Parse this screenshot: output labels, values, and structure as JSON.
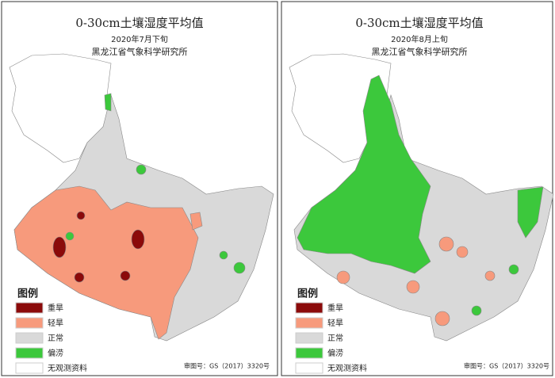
{
  "panels": [
    {
      "title": "0-30cm土壤湿度平均值",
      "date": "2020年7月下旬",
      "institute": "黑龙江省气象科学研究所",
      "legend": {
        "title": "图例",
        "items": [
          {
            "label": "重旱",
            "color": "#8b0a0a"
          },
          {
            "label": "轻旱",
            "color": "#f79a7c"
          },
          {
            "label": "正常",
            "color": "#d9d9d9"
          },
          {
            "label": "偏涝",
            "color": "#3cc83c"
          },
          {
            "label": "无观测资料",
            "color": "#ffffff"
          }
        ]
      },
      "review_number": "审图号：GS（2017）3320号"
    },
    {
      "title": "0-30cm土壤湿度平均值",
      "date": "2020年8月上旬",
      "institute": "黑龙江省气象科学研究所",
      "legend": {
        "title": "图例",
        "items": [
          {
            "label": "重旱",
            "color": "#8b0a0a"
          },
          {
            "label": "轻旱",
            "color": "#f79a7c"
          },
          {
            "label": "正常",
            "color": "#d9d9d9"
          },
          {
            "label": "偏涝",
            "color": "#3cc83c"
          },
          {
            "label": "无观测资料",
            "color": "#ffffff"
          }
        ]
      },
      "review_number": "审图号：GS（2017）3320号"
    }
  ]
}
